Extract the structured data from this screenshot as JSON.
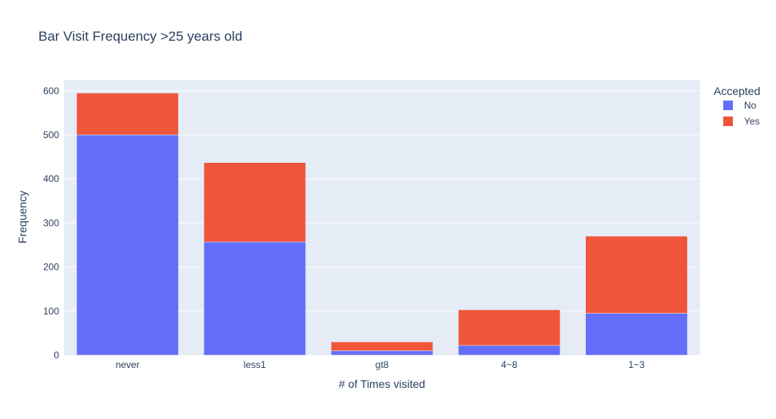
{
  "chart_data": {
    "type": "bar",
    "barmode": "stack",
    "title": "Bar Visit Frequency >25 years old",
    "xlabel": "# of Times visited",
    "ylabel": "Frequency",
    "categories": [
      "never",
      "less1",
      "gt8",
      "4~8",
      "1~3"
    ],
    "series": [
      {
        "name": "No",
        "color": "#636efa",
        "values": [
          500,
          257,
          10,
          22,
          95
        ]
      },
      {
        "name": "Yes",
        "color": "#ef553b",
        "values": [
          95,
          180,
          20,
          81,
          175
        ]
      }
    ],
    "ylim": [
      0,
      625
    ],
    "yticks": [
      0,
      100,
      200,
      300,
      400,
      500,
      600
    ],
    "grid": true,
    "legend": {
      "title": "Accepted",
      "placement": "top-right"
    },
    "colors": {
      "plot_background": "#e5ecf6",
      "grid": "#ffffff",
      "text": "#2a3f5f"
    }
  }
}
